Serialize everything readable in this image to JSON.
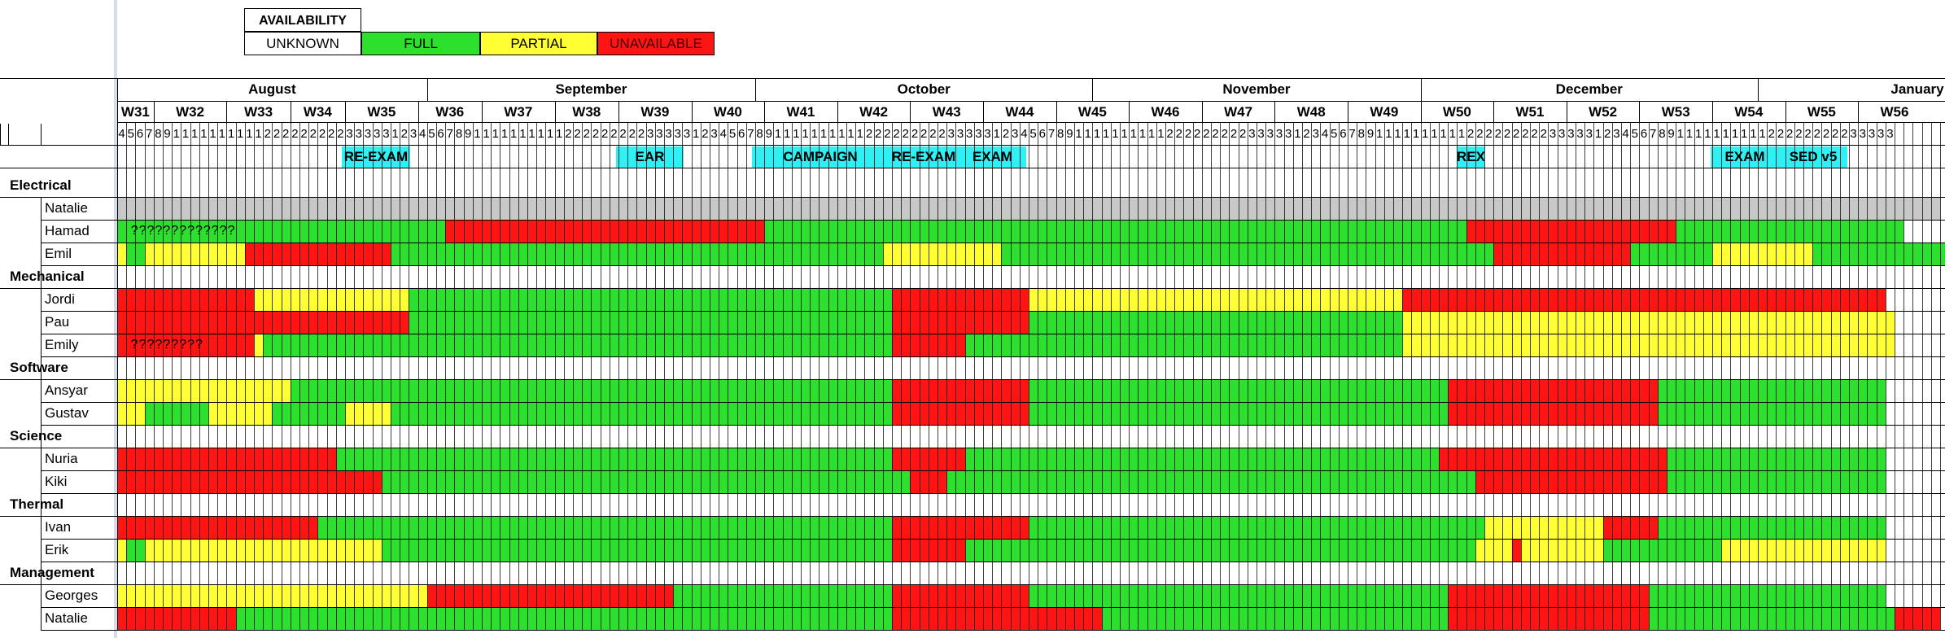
{
  "legend": {
    "title": "AVAILABILITY",
    "items": [
      {
        "label": "UNKNOWN",
        "color": "#ffffff",
        "text_color": "#000000"
      },
      {
        "label": "FULL",
        "color": "#2de02d",
        "text_color": "#000000"
      },
      {
        "label": "PARTIAL",
        "color": "#ffff33",
        "text_color": "#000000"
      },
      {
        "label": "UNAVAILABLE",
        "color": "#ff1414",
        "text_color": "#3a0000"
      }
    ]
  },
  "months": [
    "August",
    "September",
    "October",
    "November",
    "December",
    "January"
  ],
  "weeks": [
    "W31",
    "W32",
    "W33",
    "W34",
    "W35",
    "W36",
    "W37",
    "W38",
    "W39",
    "W40",
    "W41",
    "W42",
    "W43",
    "W44",
    "W45",
    "W46",
    "W47",
    "W48",
    "W49",
    "W50",
    "W51",
    "W52",
    "W53",
    "W54",
    "W55",
    "W56"
  ],
  "events": [
    "RE-EXAM",
    "EAR",
    "CAMPAIGN",
    "RE-EXAM",
    "EXAM",
    "REX",
    "EXAM",
    "SED v5"
  ],
  "groups": [
    {
      "name": "Electrical",
      "members": [
        {
          "name": "Natalie",
          "segments": [
            [
              "U",
              0,
              200
            ]
          ]
        },
        {
          "name": "Hamad",
          "note": "?????????????",
          "segments": [
            [
              "F",
              0,
              36
            ],
            [
              "R",
              36,
              71
            ],
            [
              "F",
              71,
              148
            ],
            [
              "R",
              148,
              171
            ],
            [
              "F",
              171,
              196
            ]
          ]
        },
        {
          "name": "Emil",
          "segments": [
            [
              "Y",
              0,
              1
            ],
            [
              "F",
              1,
              3
            ],
            [
              "Y",
              3,
              14
            ],
            [
              "R",
              14,
              30
            ],
            [
              "F",
              30,
              84
            ],
            [
              "Y",
              84,
              97
            ],
            [
              "F",
              97,
              151
            ],
            [
              "R",
              151,
              166
            ],
            [
              "F",
              166,
              175
            ],
            [
              "Y",
              175,
              186
            ],
            [
              "F",
              186,
              201
            ]
          ]
        }
      ]
    },
    {
      "name": "Mechanical",
      "members": [
        {
          "name": "Jordi",
          "segments": [
            [
              "R",
              0,
              15
            ],
            [
              "Y",
              15,
              32
            ],
            [
              "F",
              32,
              85
            ],
            [
              "R",
              85,
              100
            ],
            [
              "Y",
              100,
              141
            ],
            [
              "R",
              141,
              194
            ]
          ]
        },
        {
          "name": "Pau",
          "segments": [
            [
              "R",
              0,
              32
            ],
            [
              "F",
              32,
              85
            ],
            [
              "R",
              85,
              100
            ],
            [
              "F",
              100,
              141
            ],
            [
              "Y",
              141,
              195
            ]
          ]
        },
        {
          "name": "Emily",
          "note": "?????????",
          "segments": [
            [
              "R",
              0,
              15
            ],
            [
              "Y",
              15,
              16
            ],
            [
              "F",
              16,
              85
            ],
            [
              "R",
              85,
              93
            ],
            [
              "F",
              93,
              141
            ],
            [
              "Y",
              141,
              195
            ]
          ]
        }
      ]
    },
    {
      "name": "Software",
      "members": [
        {
          "name": "Ansyar",
          "segments": [
            [
              "Y",
              0,
              19
            ],
            [
              "F",
              19,
              85
            ],
            [
              "R",
              85,
              100
            ],
            [
              "F",
              100,
              146
            ],
            [
              "R",
              146,
              169
            ],
            [
              "F",
              169,
              194
            ]
          ]
        },
        {
          "name": "Gustav",
          "segments": [
            [
              "Y",
              0,
              3
            ],
            [
              "F",
              3,
              10
            ],
            [
              "Y",
              10,
              17
            ],
            [
              "F",
              17,
              25
            ],
            [
              "Y",
              25,
              30
            ],
            [
              "F",
              30,
              85
            ],
            [
              "R",
              85,
              100
            ],
            [
              "F",
              100,
              146
            ],
            [
              "R",
              146,
              169
            ],
            [
              "F",
              169,
              194
            ]
          ]
        }
      ]
    },
    {
      "name": "Science",
      "members": [
        {
          "name": "Nuria",
          "segments": [
            [
              "R",
              0,
              24
            ],
            [
              "F",
              24,
              85
            ],
            [
              "R",
              85,
              93
            ],
            [
              "F",
              93,
              145
            ],
            [
              "R",
              145,
              170
            ],
            [
              "F",
              170,
              194
            ]
          ]
        },
        {
          "name": "Kiki",
          "segments": [
            [
              "R",
              0,
              29
            ],
            [
              "F",
              29,
              87
            ],
            [
              "R",
              87,
              91
            ],
            [
              "F",
              91,
              149
            ],
            [
              "R",
              149,
              170
            ],
            [
              "F",
              170,
              194
            ]
          ]
        }
      ]
    },
    {
      "name": "Thermal",
      "members": [
        {
          "name": "Ivan",
          "segments": [
            [
              "R",
              0,
              22
            ],
            [
              "F",
              22,
              85
            ],
            [
              "R",
              85,
              100
            ],
            [
              "F",
              100,
              150
            ],
            [
              "Y",
              150,
              163
            ],
            [
              "R",
              163,
              169
            ],
            [
              "F",
              169,
              194
            ]
          ]
        },
        {
          "name": "Erik",
          "segments": [
            [
              "Y",
              0,
              1
            ],
            [
              "F",
              1,
              3
            ],
            [
              "Y",
              3,
              29
            ],
            [
              "F",
              29,
              85
            ],
            [
              "R",
              85,
              93
            ],
            [
              "F",
              93,
              149
            ],
            [
              "Y",
              149,
              153
            ],
            [
              "R",
              153,
              154
            ],
            [
              "Y",
              154,
              163
            ],
            [
              "F",
              163,
              176
            ],
            [
              "Y",
              176,
              194
            ]
          ]
        }
      ]
    },
    {
      "name": "Management",
      "members": [
        {
          "name": "Georges",
          "segments": [
            [
              "Y",
              0,
              34
            ],
            [
              "R",
              34,
              61
            ],
            [
              "F",
              61,
              85
            ],
            [
              "R",
              85,
              100
            ],
            [
              "F",
              100,
              146
            ],
            [
              "R",
              146,
              168
            ],
            [
              "F",
              168,
              194
            ]
          ]
        },
        {
          "name": "Natalie",
          "segments": [
            [
              "R",
              0,
              13
            ],
            [
              "F",
              13,
              85
            ],
            [
              "R",
              85,
              108
            ],
            [
              "F",
              108,
              146
            ],
            [
              "R",
              146,
              168
            ],
            [
              "F",
              168,
              195
            ],
            [
              "R",
              195,
              200
            ]
          ]
        }
      ]
    }
  ]
}
